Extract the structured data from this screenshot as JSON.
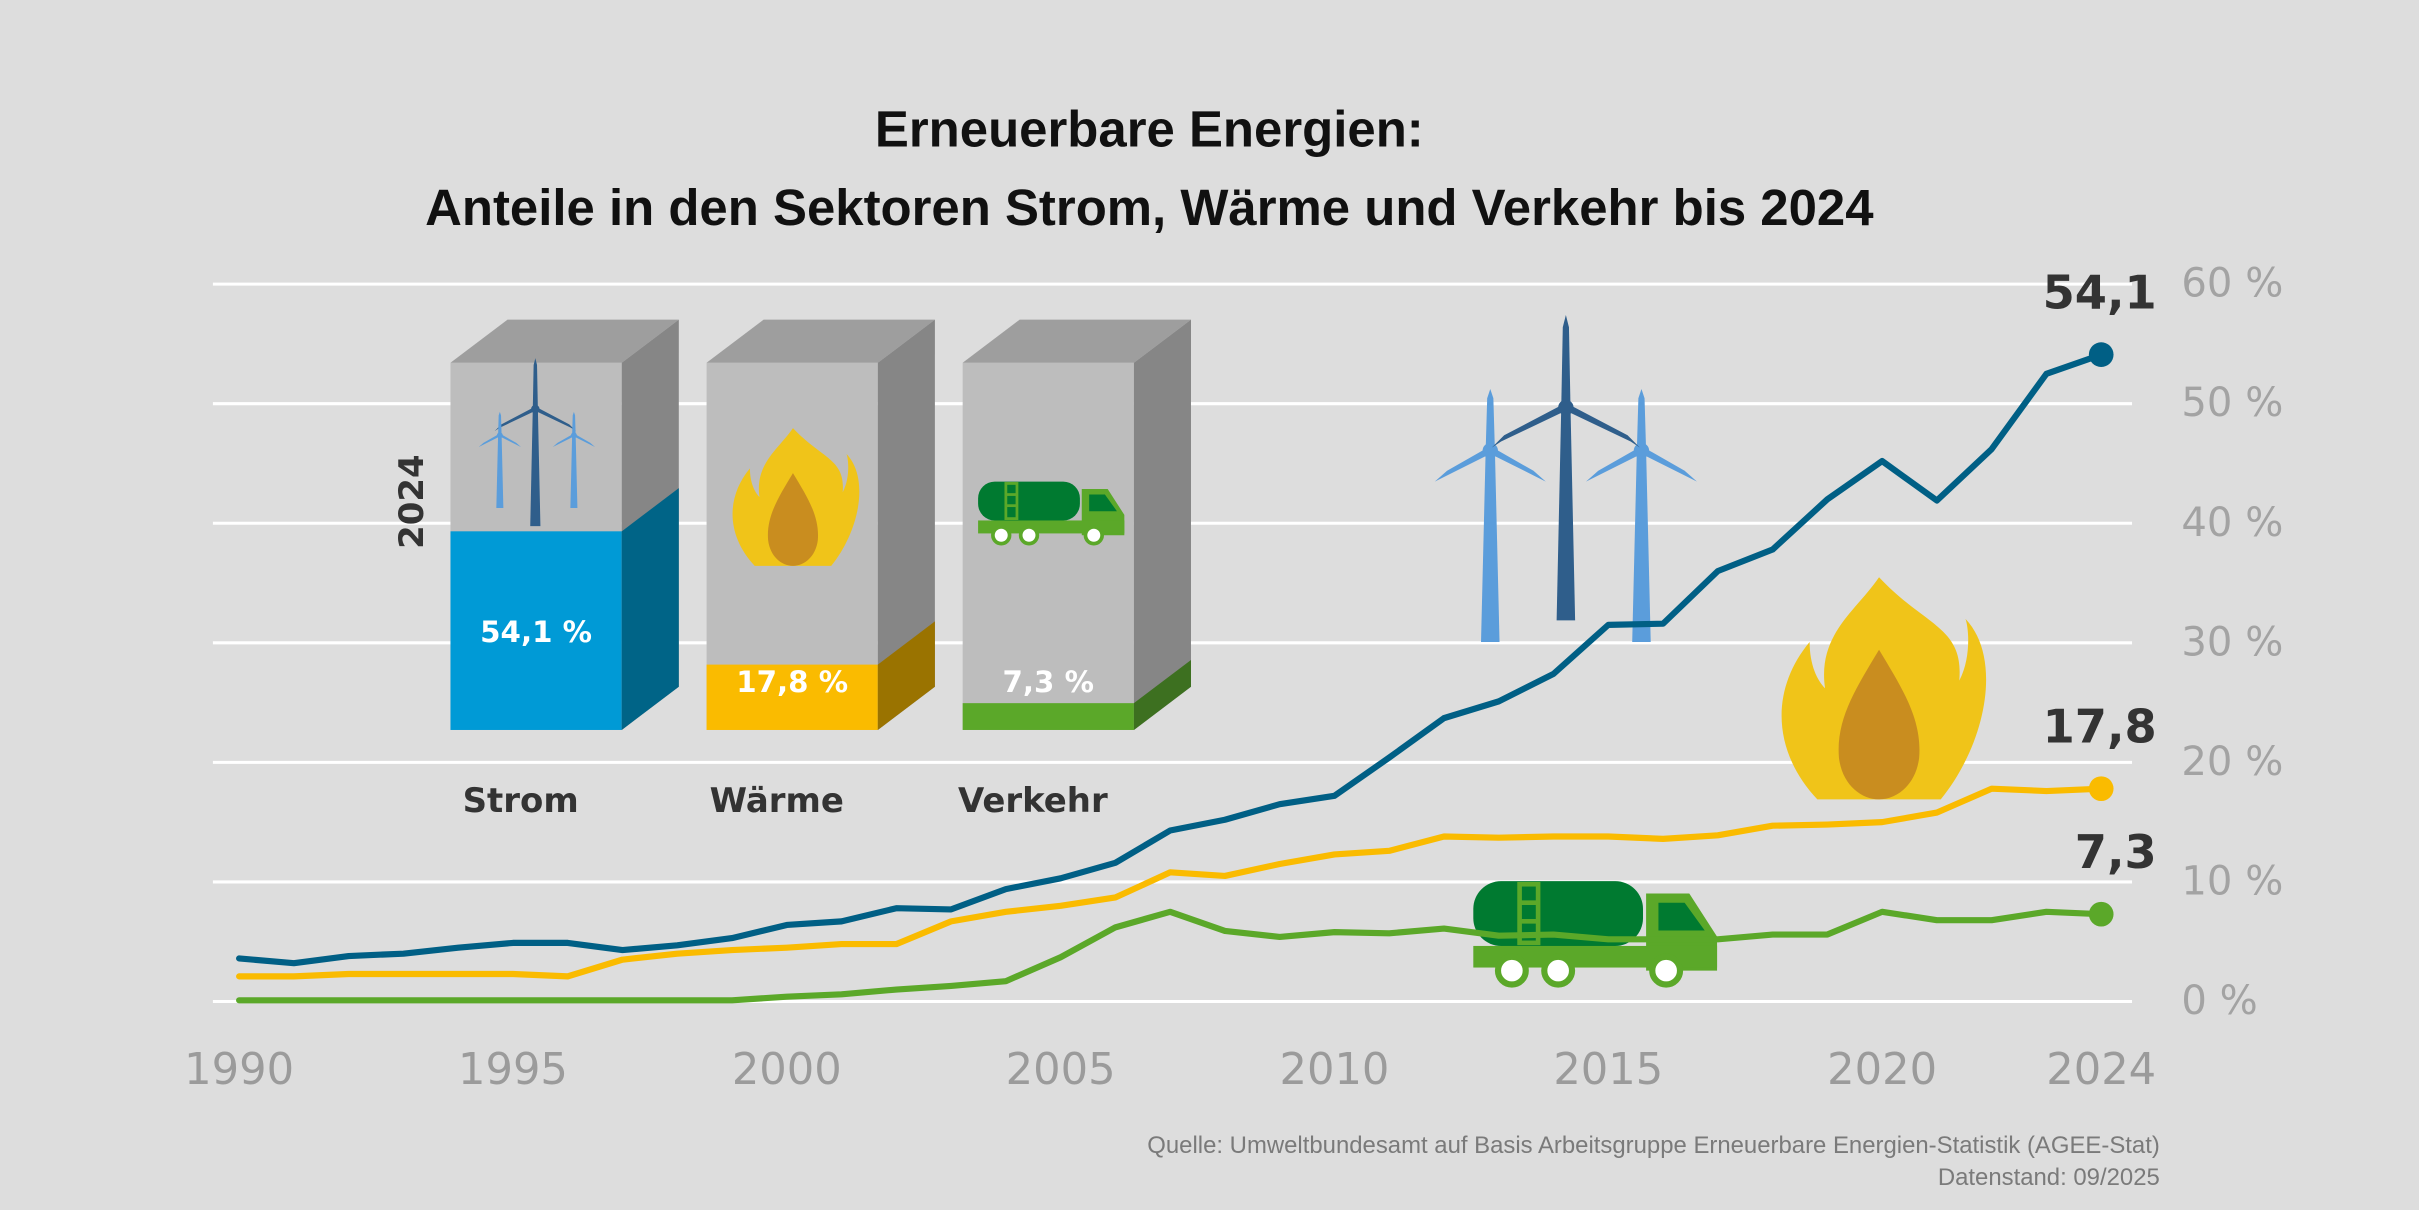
{
  "chart_data": {
    "type": "line",
    "title": "Erneuerbare Energien:",
    "subtitle": "Anteile in den Sektoren Strom, Wärme und Verkehr bis 2024",
    "x": [
      1990,
      1991,
      1992,
      1993,
      1994,
      1995,
      1996,
      1997,
      1998,
      1999,
      2000,
      2001,
      2002,
      2003,
      2004,
      2005,
      2006,
      2007,
      2008,
      2009,
      2010,
      2011,
      2012,
      2013,
      2014,
      2015,
      2016,
      2017,
      2018,
      2019,
      2020,
      2021,
      2022,
      2023,
      2024
    ],
    "xlim": [
      1990,
      2024
    ],
    "xticks": [
      1990,
      1995,
      2000,
      2005,
      2010,
      2015,
      2020,
      2024
    ],
    "ylim": [
      0,
      60
    ],
    "yticks": [
      {
        "value": 0,
        "label": "0 %"
      },
      {
        "value": 10,
        "label": "10 %"
      },
      {
        "value": 20,
        "label": "20 %"
      },
      {
        "value": 30,
        "label": "30 %"
      },
      {
        "value": 40,
        "label": "40 %"
      },
      {
        "value": 50,
        "label": "50 %"
      },
      {
        "value": 60,
        "label": "60 %"
      }
    ],
    "grid": true,
    "series": [
      {
        "name": "Strom",
        "color": "#005f85",
        "values": [
          3.6,
          3.2,
          3.8,
          4.0,
          4.5,
          4.9,
          4.9,
          4.3,
          4.7,
          5.3,
          6.4,
          6.7,
          7.8,
          7.7,
          9.4,
          10.3,
          11.6,
          14.3,
          15.2,
          16.5,
          17.2,
          20.4,
          23.7,
          25.1,
          27.4,
          31.5,
          31.6,
          36.0,
          37.8,
          42.0,
          45.2,
          41.9,
          46.2,
          52.5,
          54.1
        ],
        "value_labels": [
          null,
          null,
          null,
          null,
          null,
          null,
          null,
          null,
          null,
          null,
          null,
          null,
          null,
          null,
          null,
          null,
          null,
          null,
          null,
          null,
          null,
          null,
          null,
          null,
          null,
          null,
          null,
          null,
          null,
          null,
          null,
          null,
          null,
          null,
          "54,1"
        ]
      },
      {
        "name": "Wärme",
        "color": "#fabb00",
        "values": [
          2.1,
          2.1,
          2.3,
          2.3,
          2.3,
          2.3,
          2.1,
          3.5,
          4.0,
          4.3,
          4.5,
          4.8,
          4.8,
          6.7,
          7.5,
          8.0,
          8.7,
          10.8,
          10.5,
          11.5,
          12.3,
          12.6,
          13.8,
          13.7,
          13.8,
          13.8,
          13.6,
          13.9,
          14.7,
          14.8,
          15.0,
          15.8,
          17.8,
          17.6,
          17.8
        ],
        "value_labels": [
          null,
          null,
          null,
          null,
          null,
          null,
          null,
          null,
          null,
          null,
          null,
          null,
          null,
          null,
          null,
          null,
          null,
          null,
          null,
          null,
          null,
          null,
          null,
          null,
          null,
          null,
          null,
          null,
          null,
          null,
          null,
          null,
          null,
          null,
          "17,8"
        ]
      },
      {
        "name": "Verkehr",
        "color": "#5ba829",
        "values": [
          0.1,
          0.1,
          0.1,
          0.1,
          0.1,
          0.1,
          0.1,
          0.1,
          0.1,
          0.1,
          0.4,
          0.6,
          1.0,
          1.3,
          1.7,
          3.7,
          6.2,
          7.5,
          5.9,
          5.4,
          5.8,
          5.7,
          6.1,
          5.5,
          5.6,
          5.2,
          5.2,
          5.2,
          5.6,
          5.6,
          7.5,
          6.8,
          6.8,
          7.5,
          7.3
        ],
        "value_labels": [
          null,
          null,
          null,
          null,
          null,
          null,
          null,
          null,
          null,
          null,
          null,
          null,
          null,
          null,
          null,
          null,
          null,
          null,
          null,
          null,
          null,
          null,
          null,
          null,
          null,
          null,
          null,
          null,
          null,
          null,
          null,
          null,
          null,
          null,
          "7,3"
        ]
      }
    ],
    "inset": {
      "label": "2024",
      "categories": [
        "Strom",
        "Wärme",
        "Verkehr"
      ],
      "values": [
        54.1,
        17.8,
        7.3
      ],
      "value_labels": [
        "54,1 %",
        "17,8 %",
        "7,3 %"
      ],
      "colors": [
        "#009ad6",
        "#fabb00",
        "#5ba829"
      ],
      "side_colors": [
        "#006487",
        "#9a7300",
        "#3d7020"
      ],
      "ylim": [
        0,
        100
      ]
    },
    "source": "Quelle: Umweltbundesamt auf Basis Arbeitsgruppe Erneuerbare Energien-Statistik (AGEE-Stat)",
    "date_note": "Datenstand: 09/2025"
  }
}
